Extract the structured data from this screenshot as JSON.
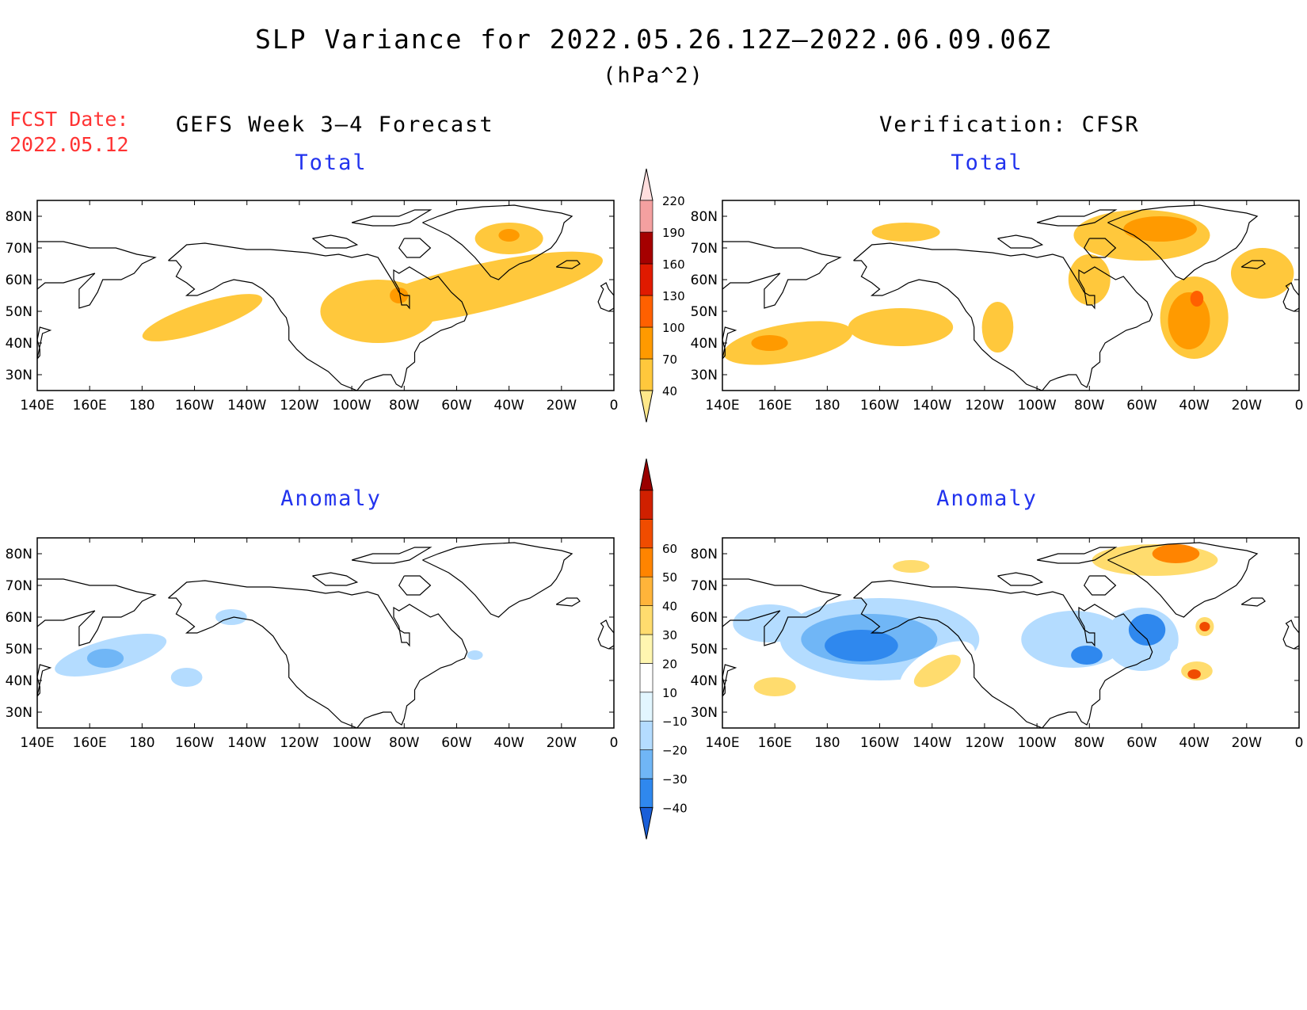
{
  "figure": {
    "title": "SLP Variance for 2022.05.26.12Z–2022.06.09.06Z",
    "units": "(hPa^2)",
    "fcst_date_label": "FCST Date:",
    "fcst_date_value": "2022.05.12",
    "left_header": "GEFS Week 3–4 Forecast",
    "right_header": "Verification: CFSR"
  },
  "chart_data": [
    {
      "type": "heatmap",
      "title": "Total",
      "group": "GEFS Week 3–4 Forecast",
      "x_ticks": [
        "140E",
        "160E",
        "180",
        "160W",
        "140W",
        "120W",
        "100W",
        "80W",
        "60W",
        "40W",
        "20W",
        "0"
      ],
      "y_ticks": [
        "80N",
        "70N",
        "60N",
        "50N",
        "40N",
        "30N"
      ],
      "xlim": [
        140,
        360
      ],
      "ylim": [
        25,
        85
      ],
      "colorbar": "total",
      "blobs": [
        {
          "lon": 203,
          "lat": 48,
          "rx": 24,
          "ry": 4.5,
          "rot": -18,
          "value": 55
        },
        {
          "lon": 270,
          "lat": 50,
          "rx": 22,
          "ry": 10,
          "rot": 0,
          "value": 55
        },
        {
          "lon": 307,
          "lat": 57,
          "rx": 50,
          "ry": 7.5,
          "rot": -13,
          "value": 55
        },
        {
          "lon": 320,
          "lat": 73,
          "rx": 13,
          "ry": 5,
          "rot": 0,
          "value": 55
        },
        {
          "lon": 320,
          "lat": 74,
          "rx": 4,
          "ry": 2,
          "rot": 0,
          "value": 80
        },
        {
          "lon": 278,
          "lat": 55,
          "rx": 3.5,
          "ry": 2.5,
          "rot": 0,
          "value": 80
        }
      ]
    },
    {
      "type": "heatmap",
      "title": "Total",
      "group": "Verification: CFSR",
      "x_ticks": [
        "140E",
        "160E",
        "180",
        "160W",
        "140W",
        "120W",
        "100W",
        "80W",
        "60W",
        "40W",
        "20W",
        "0"
      ],
      "y_ticks": [
        "80N",
        "70N",
        "60N",
        "50N",
        "40N",
        "30N"
      ],
      "xlim": [
        140,
        360
      ],
      "ylim": [
        25,
        85
      ],
      "colorbar": "total",
      "blobs": [
        {
          "lon": 165,
          "lat": 40,
          "rx": 25,
          "ry": 6,
          "rot": -10,
          "value": 55
        },
        {
          "lon": 158,
          "lat": 40,
          "rx": 7,
          "ry": 2.5,
          "rot": 0,
          "value": 80
        },
        {
          "lon": 208,
          "lat": 45,
          "rx": 20,
          "ry": 6,
          "rot": 0,
          "value": 55
        },
        {
          "lon": 210,
          "lat": 75,
          "rx": 13,
          "ry": 3,
          "rot": 0,
          "value": 55
        },
        {
          "lon": 245,
          "lat": 45,
          "rx": 6,
          "ry": 8,
          "rot": 0,
          "value": 55
        },
        {
          "lon": 300,
          "lat": 74,
          "rx": 26,
          "ry": 8,
          "rot": 0,
          "value": 55
        },
        {
          "lon": 307,
          "lat": 76,
          "rx": 14,
          "ry": 4,
          "rot": 0,
          "value": 80
        },
        {
          "lon": 280,
          "lat": 60,
          "rx": 8,
          "ry": 8,
          "rot": 0,
          "value": 55
        },
        {
          "lon": 320,
          "lat": 48,
          "rx": 13,
          "ry": 13,
          "rot": 0,
          "value": 55
        },
        {
          "lon": 318,
          "lat": 47,
          "rx": 8,
          "ry": 9,
          "rot": 0,
          "value": 80
        },
        {
          "lon": 321,
          "lat": 54,
          "rx": 2.5,
          "ry": 2.5,
          "rot": 0,
          "value": 115
        },
        {
          "lon": 346,
          "lat": 62,
          "rx": 12,
          "ry": 8,
          "rot": 0,
          "value": 55
        }
      ]
    },
    {
      "type": "heatmap",
      "title": "Anomaly",
      "group": "GEFS Week 3–4 Forecast",
      "x_ticks": [
        "140E",
        "160E",
        "180",
        "160W",
        "140W",
        "120W",
        "100W",
        "80W",
        "60W",
        "40W",
        "20W",
        "0"
      ],
      "y_ticks": [
        "80N",
        "70N",
        "60N",
        "50N",
        "40N",
        "30N"
      ],
      "xlim": [
        140,
        360
      ],
      "ylim": [
        25,
        85
      ],
      "colorbar": "anomaly",
      "blobs": [
        {
          "lon": 168,
          "lat": 48,
          "rx": 22,
          "ry": 5,
          "rot": -15,
          "value": -15
        },
        {
          "lon": 166,
          "lat": 47,
          "rx": 7,
          "ry": 3,
          "rot": 0,
          "value": -25
        },
        {
          "lon": 197,
          "lat": 41,
          "rx": 6,
          "ry": 3,
          "rot": 0,
          "value": -15
        },
        {
          "lon": 214,
          "lat": 60,
          "rx": 6,
          "ry": 2.5,
          "rot": 0,
          "value": -15
        },
        {
          "lon": 272,
          "lat": 44,
          "rx": 9,
          "ry": 4,
          "rot": 0,
          "value": 15
        },
        {
          "lon": 322,
          "lat": 73,
          "rx": 7,
          "ry": 3,
          "rot": 0,
          "value": 15
        },
        {
          "lon": 307,
          "lat": 48,
          "rx": 3,
          "ry": 1.5,
          "rot": 0,
          "value": -15
        }
      ]
    },
    {
      "type": "heatmap",
      "title": "Anomaly",
      "group": "Verification: CFSR",
      "x_ticks": [
        "140E",
        "160E",
        "180",
        "160W",
        "140W",
        "120W",
        "100W",
        "80W",
        "60W",
        "40W",
        "20W",
        "0"
      ],
      "y_ticks": [
        "80N",
        "70N",
        "60N",
        "50N",
        "40N",
        "30N"
      ],
      "xlim": [
        140,
        360
      ],
      "ylim": [
        25,
        85
      ],
      "colorbar": "anomaly",
      "blobs": [
        {
          "lon": 200,
          "lat": 53,
          "rx": 38,
          "ry": 13,
          "rot": 0,
          "value": -15
        },
        {
          "lon": 196,
          "lat": 53,
          "rx": 26,
          "ry": 8,
          "rot": 0,
          "value": -25
        },
        {
          "lon": 193,
          "lat": 51,
          "rx": 14,
          "ry": 5,
          "rot": 0,
          "value": -35
        },
        {
          "lon": 158,
          "lat": 58,
          "rx": 14,
          "ry": 6,
          "rot": 0,
          "value": -15
        },
        {
          "lon": 274,
          "lat": 53,
          "rx": 20,
          "ry": 9,
          "rot": 0,
          "value": -15
        },
        {
          "lon": 279,
          "lat": 48,
          "rx": 6,
          "ry": 3,
          "rot": 0,
          "value": -35
        },
        {
          "lon": 300,
          "lat": 53,
          "rx": 14,
          "ry": 10,
          "rot": 0,
          "value": -15
        },
        {
          "lon": 302,
          "lat": 56,
          "rx": 7,
          "ry": 5,
          "rot": 0,
          "value": -35
        },
        {
          "lon": 165,
          "lat": 37,
          "rx": 14,
          "ry": 4,
          "rot": -8,
          "value": 15
        },
        {
          "lon": 160,
          "lat": 38,
          "rx": 8,
          "ry": 3,
          "rot": 0,
          "value": 35
        },
        {
          "lon": 222,
          "lat": 44,
          "rx": 16,
          "ry": 6,
          "rot": -30,
          "value": 15
        },
        {
          "lon": 222,
          "lat": 43,
          "rx": 10,
          "ry": 3.5,
          "rot": -30,
          "value": 35
        },
        {
          "lon": 215,
          "lat": 76,
          "rx": 14,
          "ry": 4,
          "rot": 0,
          "value": 15
        },
        {
          "lon": 212,
          "lat": 76,
          "rx": 7,
          "ry": 2,
          "rot": 0,
          "value": 35
        },
        {
          "lon": 302,
          "lat": 78,
          "rx": 32,
          "ry": 8,
          "rot": 0,
          "value": 15
        },
        {
          "lon": 305,
          "lat": 78,
          "rx": 24,
          "ry": 5,
          "rot": 0,
          "value": 35
        },
        {
          "lon": 313,
          "lat": 80,
          "rx": 9,
          "ry": 3,
          "rot": 0,
          "value": 55
        },
        {
          "lon": 322,
          "lat": 44,
          "rx": 12,
          "ry": 6,
          "rot": 25,
          "value": 15
        },
        {
          "lon": 321,
          "lat": 43,
          "rx": 6,
          "ry": 3,
          "rot": 0,
          "value": 35
        },
        {
          "lon": 320,
          "lat": 42,
          "rx": 2.5,
          "ry": 1.5,
          "rot": 0,
          "value": 65
        },
        {
          "lon": 324,
          "lat": 57,
          "rx": 3.5,
          "ry": 3,
          "rot": 0,
          "value": 35
        },
        {
          "lon": 324,
          "lat": 57,
          "rx": 2,
          "ry": 1.5,
          "rot": 0,
          "value": 65
        },
        {
          "lon": 300,
          "lat": 36,
          "rx": 16,
          "ry": 3,
          "rot": 15,
          "value": 15
        },
        {
          "lon": 252,
          "lat": 39,
          "rx": 4,
          "ry": 5,
          "rot": 0,
          "value": 15
        },
        {
          "lon": 345,
          "lat": 63,
          "rx": 7,
          "ry": 4,
          "rot": 0,
          "value": 15
        },
        {
          "lon": 344,
          "lat": 40,
          "rx": 4,
          "ry": 4,
          "rot": 0,
          "value": 15
        },
        {
          "lon": 356,
          "lat": 73,
          "rx": 5,
          "ry": 2,
          "rot": 0,
          "value": 15
        }
      ]
    }
  ],
  "colorbars": {
    "total": {
      "labels": [
        "40",
        "70",
        "100",
        "130",
        "160",
        "190",
        "220"
      ],
      "colors": [
        "#ffe88a",
        "#ffc83c",
        "#ff9a00",
        "#ff6000",
        "#e01a00",
        "#a50000",
        "#f4a0a0",
        "#ffdede"
      ],
      "extend": "both"
    },
    "anomaly": {
      "labels": [
        "−40",
        "−30",
        "−20",
        "−10",
        "10",
        "20",
        "30",
        "40",
        "50",
        "60"
      ],
      "colors": [
        "#1a5fd8",
        "#2f88ee",
        "#70b6f6",
        "#b4dcff",
        "#e2f6ff",
        "#ffffff",
        "#fff6b0",
        "#ffdc6e",
        "#ffb43a",
        "#ff8400",
        "#f04c00",
        "#d02000",
        "#9a0000"
      ],
      "extend": "both"
    }
  }
}
